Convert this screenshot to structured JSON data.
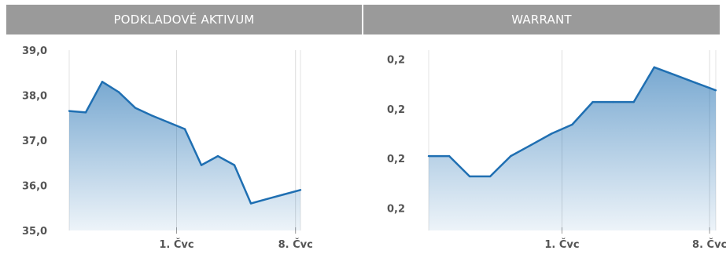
{
  "chart_data": [
    {
      "type": "area",
      "title": "PODKLADOVÉ AKTIVUM",
      "xlabel": "",
      "ylabel": "",
      "x": [
        0,
        1,
        2,
        3,
        4,
        5,
        6,
        7,
        8,
        9,
        10,
        11,
        12,
        13,
        14
      ],
      "values": [
        37.65,
        37.62,
        38.3,
        38.07,
        37.72,
        37.55,
        37.4,
        37.25,
        36.45,
        36.65,
        36.45,
        35.6,
        35.7,
        35.8,
        35.9
      ],
      "ylim": [
        35.0,
        39.0
      ],
      "yticks": [
        "39,0",
        "38,0",
        "37,0",
        "36,0",
        "35,0"
      ],
      "ytick_values": [
        39,
        38,
        37,
        36,
        35
      ],
      "xticks": [
        "1. Čvc",
        "8. Čvc"
      ],
      "xtick_positions": [
        6.5,
        13.7
      ],
      "color": "#1f6fb2",
      "grid": true
    },
    {
      "type": "area",
      "title": "WARRANT",
      "xlabel": "",
      "ylabel": "",
      "x": [
        0,
        1,
        2,
        3,
        4,
        5,
        6,
        7,
        8,
        9,
        10,
        11,
        12,
        13,
        14
      ],
      "values": [
        0.2165,
        0.2165,
        0.212,
        0.212,
        0.2165,
        0.219,
        0.2215,
        0.2235,
        0.2285,
        0.2285,
        0.2285,
        0.2362,
        0.2345,
        0.2328,
        0.2311
      ],
      "ylim": [
        0.2,
        0.24
      ],
      "yticks": [
        "0,2",
        "0,2",
        "0,2",
        "0,2"
      ],
      "ytick_values": [
        0.238,
        0.227,
        0.216,
        0.205
      ],
      "xticks": [
        "1. Čvc",
        "8. Čvc"
      ],
      "xtick_positions": [
        6.5,
        13.7
      ],
      "color": "#1f6fb2",
      "grid": true
    }
  ]
}
